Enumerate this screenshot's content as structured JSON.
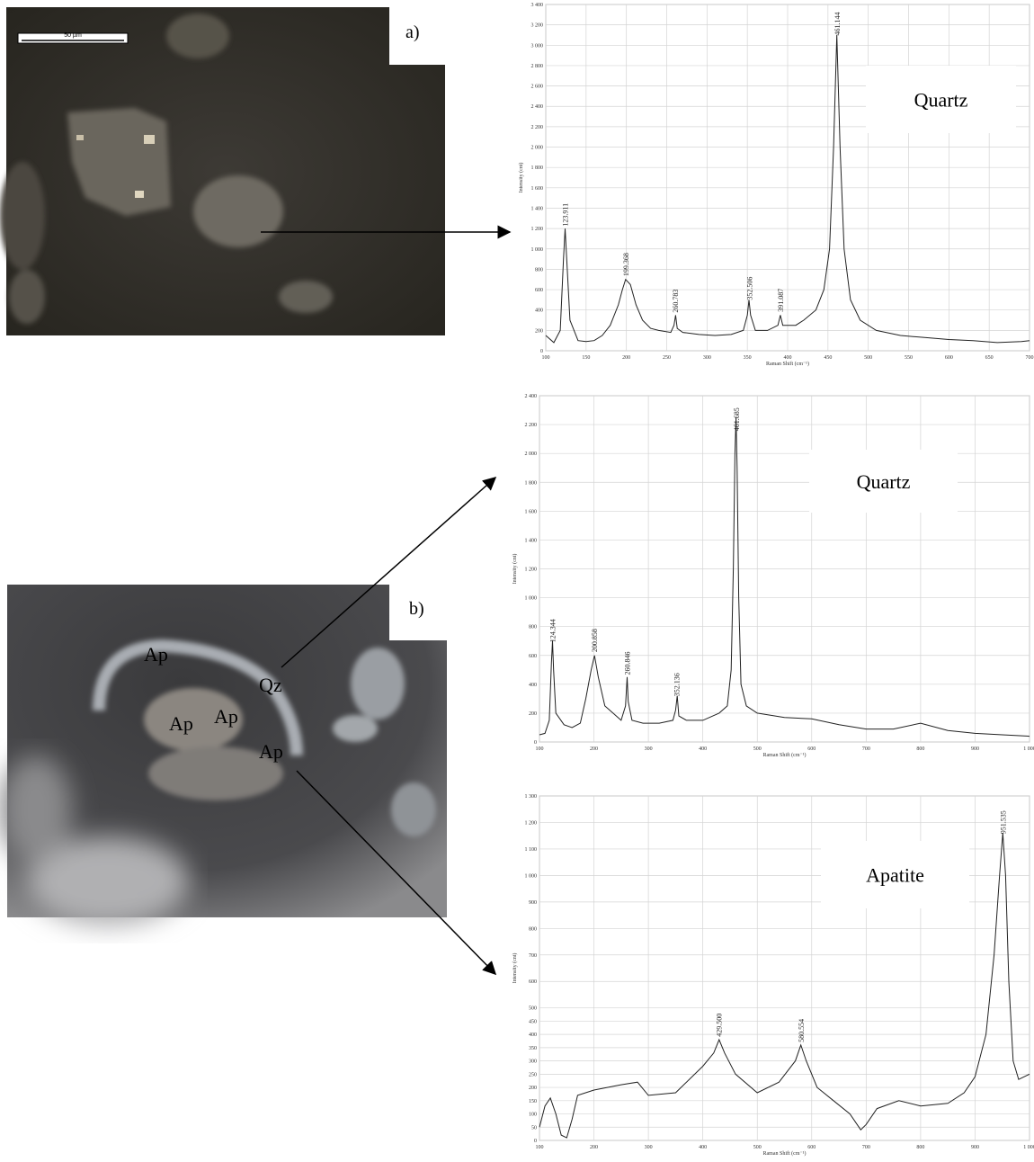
{
  "images": [
    {
      "panel": "a)",
      "scale_bar": "50 µm"
    },
    {
      "panel": "b)",
      "labels": [
        "Ap",
        "Ap",
        "Ap",
        "Ap",
        "Qz"
      ]
    }
  ],
  "chart_data": [
    {
      "type": "line",
      "annotation": "Quartz",
      "x_label": "Raman Shift (cm⁻¹)",
      "y_label": "Intensity (cnt)",
      "color": "#222222",
      "grid": true,
      "xlim": [
        100,
        700
      ],
      "xticks": [
        100,
        150,
        200,
        250,
        300,
        350,
        400,
        450,
        500,
        550,
        600,
        650,
        700
      ],
      "ylim": [
        0,
        3400
      ],
      "yticks": [
        0,
        200,
        400,
        600,
        800,
        {
          "value": 1000,
          "label": "1 000"
        },
        {
          "value": 1200,
          "label": "1 200"
        },
        {
          "value": 1400,
          "label": "1 400"
        },
        {
          "value": 1600,
          "label": "1 600"
        },
        {
          "value": 1800,
          "label": "1 800"
        },
        {
          "value": 2000,
          "label": "2 000"
        },
        {
          "value": 2200,
          "label": "2 200"
        },
        {
          "value": 2400,
          "label": "2 400"
        },
        {
          "value": 2600,
          "label": "2 600"
        },
        {
          "value": 2800,
          "label": "2 800"
        },
        {
          "value": 3000,
          "label": "3 000"
        },
        {
          "value": 3200,
          "label": "3 200"
        },
        {
          "value": 3400,
          "label": "3 400"
        }
      ],
      "peaks": [
        123.911,
        199.368,
        260.783,
        352.506,
        391.087,
        461.144
      ],
      "x": [
        100,
        110,
        118,
        122,
        124,
        126,
        130,
        140,
        150,
        160,
        170,
        180,
        190,
        195,
        199,
        205,
        212,
        220,
        230,
        240,
        255,
        259,
        261,
        263,
        270,
        290,
        310,
        330,
        345,
        350,
        352,
        354,
        360,
        375,
        388,
        391,
        394,
        400,
        410,
        420,
        435,
        445,
        452,
        457,
        461,
        465,
        470,
        478,
        490,
        510,
        540,
        570,
        600,
        630,
        660,
        690,
        700
      ],
      "values": [
        150,
        80,
        200,
        900,
        1200,
        900,
        300,
        100,
        90,
        100,
        150,
        250,
        450,
        600,
        700,
        650,
        450,
        300,
        220,
        200,
        180,
        250,
        350,
        220,
        180,
        160,
        150,
        160,
        200,
        350,
        500,
        350,
        200,
        200,
        250,
        350,
        250,
        250,
        250,
        300,
        400,
        600,
        1000,
        2000,
        3100,
        2000,
        1000,
        500,
        300,
        200,
        150,
        130,
        110,
        100,
        80,
        90,
        100
      ]
    },
    {
      "type": "line",
      "annotation": "Quartz",
      "x_label": "Raman Shift (cm⁻¹)",
      "y_label": "Intensity (cnt)",
      "color": "#222222",
      "grid": true,
      "xlim": [
        100,
        1000
      ],
      "xticks": [
        100,
        200,
        300,
        400,
        500,
        600,
        700,
        800,
        900,
        {
          "value": 1000,
          "label": "1 000"
        }
      ],
      "ylim": [
        0,
        2400
      ],
      "yticks": [
        0,
        200,
        400,
        600,
        800,
        {
          "value": 1000,
          "label": "1 000"
        },
        {
          "value": 1200,
          "label": "1 200"
        },
        {
          "value": 1400,
          "label": "1 400"
        },
        {
          "value": 1600,
          "label": "1 600"
        },
        {
          "value": 1800,
          "label": "1 800"
        },
        {
          "value": 2000,
          "label": "2 000"
        },
        {
          "value": 2200,
          "label": "2 200"
        },
        {
          "value": 2400,
          "label": "2 400"
        }
      ],
      "peaks": [
        124.344,
        200.858,
        260.846,
        352.136,
        461.685
      ],
      "x": [
        100,
        110,
        118,
        122,
        124,
        126,
        130,
        145,
        160,
        175,
        185,
        195,
        201,
        208,
        220,
        235,
        250,
        258,
        261,
        263,
        270,
        290,
        320,
        345,
        350,
        353,
        356,
        370,
        400,
        430,
        445,
        452,
        456,
        459,
        461,
        463,
        466,
        470,
        480,
        500,
        550,
        600,
        650,
        700,
        750,
        800,
        850,
        900,
        950,
        1000
      ],
      "values": [
        50,
        60,
        150,
        550,
        700,
        500,
        200,
        120,
        100,
        130,
        300,
        500,
        600,
        450,
        250,
        200,
        150,
        250,
        450,
        280,
        150,
        130,
        130,
        150,
        220,
        320,
        180,
        150,
        150,
        200,
        250,
        500,
        1200,
        2000,
        2250,
        1900,
        1000,
        400,
        250,
        200,
        170,
        160,
        120,
        90,
        90,
        130,
        80,
        60,
        50,
        40
      ]
    },
    {
      "type": "line",
      "annotation": "Apatite",
      "x_label": "Raman Shift (cm⁻¹)",
      "y_label": "Intensity (cnt)",
      "color": "#222222",
      "grid": true,
      "xlim": [
        100,
        1000
      ],
      "xticks": [
        100,
        200,
        300,
        400,
        500,
        600,
        700,
        800,
        900,
        {
          "value": 1000,
          "label": "1 000"
        }
      ],
      "ylim": [
        0,
        1300
      ],
      "yticks": [
        0,
        50,
        100,
        150,
        200,
        250,
        300,
        350,
        400,
        450,
        500,
        600,
        700,
        800,
        900,
        {
          "value": 1000,
          "label": "1 000"
        },
        {
          "value": 1100,
          "label": "1 100"
        },
        {
          "value": 1200,
          "label": "1 200"
        },
        {
          "value": 1300,
          "label": "1 300"
        }
      ],
      "peaks": [
        {
          "value": 429.5,
          "label": "429.500"
        },
        580.554,
        951.535
      ],
      "x": [
        100,
        110,
        120,
        130,
        140,
        150,
        160,
        170,
        200,
        250,
        280,
        300,
        350,
        400,
        420,
        430,
        440,
        460,
        500,
        540,
        570,
        580,
        590,
        610,
        640,
        670,
        690,
        700,
        720,
        760,
        800,
        850,
        880,
        900,
        920,
        935,
        945,
        951,
        956,
        962,
        970,
        980,
        1000
      ],
      "values": [
        50,
        130,
        160,
        100,
        20,
        10,
        80,
        170,
        190,
        210,
        220,
        170,
        180,
        280,
        330,
        380,
        330,
        250,
        180,
        220,
        300,
        360,
        300,
        200,
        150,
        100,
        40,
        60,
        120,
        150,
        130,
        140,
        180,
        240,
        400,
        700,
        1000,
        1160,
        1000,
        600,
        300,
        230,
        250
      ]
    }
  ]
}
